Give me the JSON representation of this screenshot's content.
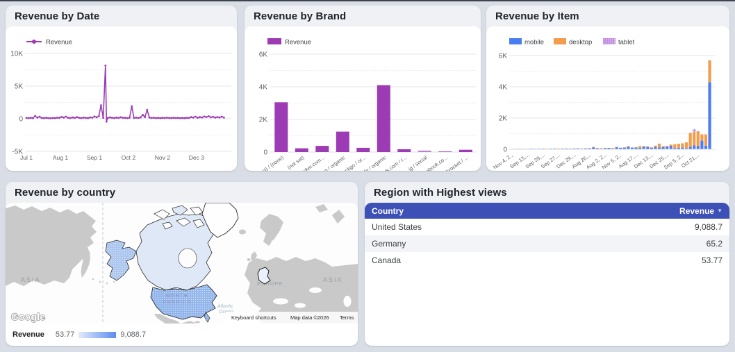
{
  "cards": {
    "date": {
      "title": "Revenue by Date"
    },
    "brand": {
      "title": "Revenue by Brand"
    },
    "item": {
      "title": "Revenue by Item"
    },
    "map": {
      "title": "Revenue by country",
      "labels": {
        "asia_left": "ASIA",
        "asia_right": "ASIA",
        "europe": "EUROPE",
        "na1": "NORTH",
        "na2": "AMERICA",
        "atl1": "Atlantic",
        "atl2": "Ocean"
      },
      "google_logo": "Google",
      "attribution": {
        "shortcuts": "Keyboard shortcuts",
        "map_data": "Map data ©2026",
        "terms": "Terms"
      }
    },
    "table": {
      "title": "Region with Highest views",
      "columns": [
        "Country",
        "Revenue"
      ],
      "sort_icon": "▼",
      "rows": [
        [
          "United States",
          "9,088.7"
        ],
        [
          "Germany",
          "65.2"
        ],
        [
          "Canada",
          "53.77"
        ]
      ]
    }
  },
  "colors": {
    "purple": "#9c3bb3",
    "blue": "#4a7df2",
    "orange": "#f19d4b",
    "tablet": "#c18ee0",
    "grid_major": "#e4e4e4",
    "grid_minor": "#ececec",
    "axis_line": "#dadce0",
    "axis_text": "#616161",
    "legend_text": "#3c4043",
    "us_fill": "#8fb3ea",
    "alaska_fill": "#a9c4ee",
    "canada_fill": "#dfe8f6",
    "germany_fill": "#eaf1fb"
  },
  "chart_data": [
    {
      "type": "line",
      "title": "Revenue by Date",
      "legend_position": "top",
      "grid": true,
      "ylim": [
        -5000,
        10000
      ],
      "y_ticks": [
        {
          "v": 10000,
          "label": "10K"
        },
        {
          "v": 5000,
          "label": "5K"
        },
        {
          "v": 0,
          "label": "0"
        },
        {
          "v": -5000,
          "label": "-5K"
        }
      ],
      "y_minor": [
        7500,
        2500,
        -2500
      ],
      "x_ticks": [
        {
          "day": 0,
          "label": "Jul 1"
        },
        {
          "day": 31,
          "label": "Aug 1"
        },
        {
          "day": 62,
          "label": "Sep 1"
        },
        {
          "day": 93,
          "label": "Oct 2"
        },
        {
          "day": 124,
          "label": "Nov 2"
        },
        {
          "day": 155,
          "label": "Dec 3"
        }
      ],
      "x_domain_days": [
        0,
        181
      ],
      "series": [
        {
          "name": "Revenue",
          "points": [
            [
              0,
              120
            ],
            [
              2,
              80
            ],
            [
              4,
              150
            ],
            [
              6,
              90
            ],
            [
              8,
              420
            ],
            [
              10,
              180
            ],
            [
              12,
              300
            ],
            [
              14,
              120
            ],
            [
              16,
              80
            ],
            [
              18,
              150
            ],
            [
              20,
              100
            ],
            [
              22,
              60
            ],
            [
              24,
              120
            ],
            [
              26,
              90
            ],
            [
              28,
              160
            ],
            [
              30,
              140
            ],
            [
              32,
              280
            ],
            [
              34,
              180
            ],
            [
              36,
              320
            ],
            [
              38,
              150
            ],
            [
              40,
              100
            ],
            [
              42,
              200
            ],
            [
              44,
              120
            ],
            [
              46,
              250
            ],
            [
              48,
              150
            ],
            [
              50,
              100
            ],
            [
              52,
              180
            ],
            [
              54,
              130
            ],
            [
              56,
              90
            ],
            [
              58,
              200
            ],
            [
              60,
              160
            ],
            [
              62,
              340
            ],
            [
              64,
              220
            ],
            [
              66,
              380
            ],
            [
              68,
              2050
            ],
            [
              70,
              150
            ],
            [
              72,
              8150
            ],
            [
              73,
              -450
            ],
            [
              74,
              120
            ],
            [
              76,
              200
            ],
            [
              78,
              150
            ],
            [
              80,
              100
            ],
            [
              82,
              180
            ],
            [
              84,
              120
            ],
            [
              86,
              220
            ],
            [
              88,
              150
            ],
            [
              90,
              130
            ],
            [
              92,
              100
            ],
            [
              94,
              160
            ],
            [
              96,
              1900
            ],
            [
              98,
              130
            ],
            [
              100,
              170
            ],
            [
              102,
              120
            ],
            [
              104,
              200
            ],
            [
              106,
              600
            ],
            [
              108,
              250
            ],
            [
              110,
              1350
            ],
            [
              112,
              180
            ],
            [
              114,
              120
            ],
            [
              116,
              150
            ],
            [
              118,
              100
            ],
            [
              120,
              130
            ],
            [
              122,
              90
            ],
            [
              124,
              140
            ],
            [
              126,
              110
            ],
            [
              128,
              160
            ],
            [
              130,
              120
            ],
            [
              132,
              100
            ],
            [
              134,
              150
            ],
            [
              136,
              110
            ],
            [
              138,
              130
            ],
            [
              140,
              100
            ],
            [
              142,
              120
            ],
            [
              144,
              90
            ],
            [
              146,
              140
            ],
            [
              148,
              110
            ],
            [
              150,
              260
            ],
            [
              152,
              180
            ],
            [
              154,
              320
            ],
            [
              156,
              150
            ],
            [
              158,
              240
            ],
            [
              160,
              200
            ],
            [
              162,
              340
            ],
            [
              164,
              260
            ],
            [
              166,
              380
            ],
            [
              168,
              220
            ],
            [
              170,
              300
            ],
            [
              172,
              180
            ],
            [
              174,
              260
            ],
            [
              176,
              200
            ],
            [
              178,
              320
            ],
            [
              180,
              180
            ]
          ]
        }
      ]
    },
    {
      "type": "bar",
      "title": "Revenue by Brand",
      "legend": "Revenue",
      "legend_position": "top",
      "grid": true,
      "ylim": [
        0,
        6000
      ],
      "y_ticks": [
        {
          "v": 6000,
          "label": "6K"
        },
        {
          "v": 4000,
          "label": "4K"
        },
        {
          "v": 2000,
          "label": "2K"
        },
        {
          "v": 0,
          "label": "0"
        }
      ],
      "y_minor": [
        5000,
        3000,
        1000
      ],
      "categories": [
        "(direct) / (none)",
        "(not set)",
        "backpacker.com...",
        "bing / organic",
        "duckduckgo / or...",
        "google / organic",
        "hotdeals.com / r...",
        "ig / social",
        "m.facebook.co...",
        "restockrocket / ..."
      ],
      "values": [
        3050,
        230,
        380,
        1250,
        260,
        4100,
        170,
        90,
        35,
        140
      ],
      "pattern_indices": [
        7
      ]
    },
    {
      "type": "stacked_bar",
      "title": "Revenue by Item",
      "legend_position": "top",
      "grid": true,
      "ylim": [
        0,
        6000
      ],
      "y_ticks": [
        {
          "v": 6000,
          "label": "6K"
        },
        {
          "v": 4000,
          "label": "4K"
        },
        {
          "v": 2000,
          "label": "2K"
        },
        {
          "v": 0,
          "label": "0"
        }
      ],
      "y_minor": [
        5000,
        3000,
        1000
      ],
      "series_names": [
        "mobile",
        "desktop",
        "tablet"
      ],
      "x_labels": [
        "Nov 4, 2...",
        "Sep 13,...",
        "Sep 28,...",
        "Sep 27,...",
        "Dec 29,...",
        "Aug 26,...",
        "Aug 2, 2...",
        "Nov 5, 2...",
        "Aug 17,...",
        "Dec 13,...",
        "Dec 25,...",
        "Sep 5, 2...",
        "Oct 21,..."
      ],
      "label_every": 4,
      "bars": [
        [
          0,
          30,
          0
        ],
        [
          25,
          0,
          10
        ],
        [
          35,
          0,
          0
        ],
        [
          30,
          0,
          0
        ],
        [
          0,
          35,
          0
        ],
        [
          40,
          0,
          0
        ],
        [
          35,
          0,
          0
        ],
        [
          40,
          0,
          0
        ],
        [
          45,
          0,
          0
        ],
        [
          0,
          40,
          0
        ],
        [
          45,
          0,
          0
        ],
        [
          50,
          0,
          0
        ],
        [
          0,
          50,
          0
        ],
        [
          50,
          0,
          0
        ],
        [
          55,
          0,
          0
        ],
        [
          0,
          55,
          0
        ],
        [
          55,
          0,
          0
        ],
        [
          60,
          0,
          0
        ],
        [
          0,
          60,
          0
        ],
        [
          60,
          0,
          10
        ],
        [
          65,
          0,
          0
        ],
        [
          110,
          40,
          0
        ],
        [
          70,
          0,
          0
        ],
        [
          0,
          75,
          0
        ],
        [
          80,
          0,
          0
        ],
        [
          90,
          0,
          0
        ],
        [
          0,
          90,
          0
        ],
        [
          130,
          0,
          20
        ],
        [
          100,
          0,
          0
        ],
        [
          100,
          30,
          0
        ],
        [
          160,
          40,
          0
        ],
        [
          110,
          0,
          0
        ],
        [
          120,
          0,
          0
        ],
        [
          90,
          120,
          0
        ],
        [
          170,
          40,
          0
        ],
        [
          140,
          50,
          0
        ],
        [
          100,
          30,
          0
        ],
        [
          150,
          80,
          0
        ],
        [
          120,
          240,
          0
        ],
        [
          140,
          60,
          0
        ],
        [
          160,
          60,
          0
        ],
        [
          220,
          80,
          0
        ],
        [
          80,
          240,
          0
        ],
        [
          100,
          250,
          0
        ],
        [
          120,
          260,
          0
        ],
        [
          60,
          380,
          0
        ],
        [
          150,
          900,
          0
        ],
        [
          250,
          850,
          200
        ],
        [
          200,
          950,
          0
        ],
        [
          550,
          400,
          0
        ],
        [
          230,
          720,
          0
        ],
        [
          4300,
          1400,
          0
        ]
      ]
    },
    {
      "type": "choropleth",
      "title": "Revenue by country",
      "countries": [
        {
          "name": "United States",
          "value": 9088.7
        },
        {
          "name": "Germany",
          "value": 65.2
        },
        {
          "name": "Canada",
          "value": 53.77
        }
      ],
      "legend": {
        "label": "Revenue",
        "min": "53.77",
        "max": "9,088.7"
      }
    }
  ]
}
